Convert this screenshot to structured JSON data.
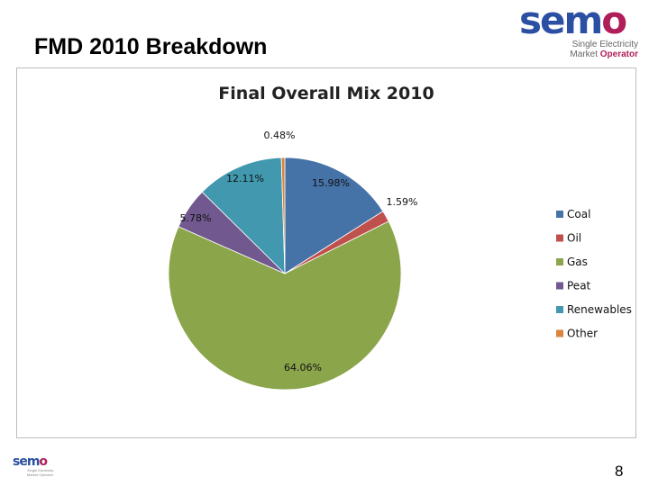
{
  "slide": {
    "title": "FMD 2010 Breakdown",
    "page_number": "8"
  },
  "logo": {
    "word_start": "sem",
    "word_end": "o",
    "line1": "Single Electricity",
    "line2_start": "Market ",
    "line2_end": "Operator",
    "bottom_line1": "Single Electricity",
    "bottom_line2": "Market Operator"
  },
  "chart_data": {
    "type": "pie",
    "title": "Final Overall Mix 2010",
    "legend_position": "right",
    "categories": [
      "Coal",
      "Oil",
      "Gas",
      "Peat",
      "Renewables",
      "Other"
    ],
    "values": [
      15.98,
      1.59,
      64.06,
      5.78,
      12.11,
      0.48
    ],
    "labels": [
      "15.98%",
      "1.59%",
      "64.06%",
      "5.78%",
      "12.11%",
      "0.48%"
    ],
    "colors": [
      "#4572A7",
      "#C0504D",
      "#8BA54B",
      "#71588F",
      "#4198AF",
      "#DB843D"
    ]
  }
}
